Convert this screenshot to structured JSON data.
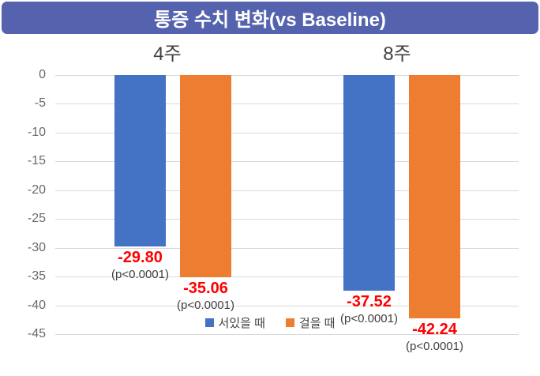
{
  "header": {
    "title": "통증 수치 변화(vs Baseline)",
    "bg_color": "#5563AE",
    "text_color": "#FFFFFF"
  },
  "chart_data": {
    "type": "bar",
    "title": "통증 수치 변화(vs Baseline)",
    "categories": [
      "4주",
      "8주"
    ],
    "category_ids": [
      "week4",
      "week8"
    ],
    "series": [
      {
        "id": "standing",
        "name": "서있을 때",
        "color": "#4472C4",
        "values": [
          -29.8,
          -37.52
        ],
        "value_labels": [
          "-29.80",
          "-37.52"
        ],
        "p_labels": [
          "(p<0.0001)",
          "(p<0.0001)"
        ]
      },
      {
        "id": "walking",
        "name": "걸을 때",
        "color": "#ED7D31",
        "values": [
          -35.06,
          -42.24
        ],
        "value_labels": [
          "-35.06",
          "-42.24"
        ],
        "p_labels": [
          "(p<0.0001)",
          "(p<0.0001)"
        ]
      }
    ],
    "ylim": [
      0,
      -45
    ],
    "y_ticks": [
      0,
      -5,
      -10,
      -15,
      -20,
      -25,
      -30,
      -35,
      -40,
      -45
    ],
    "y_tick_labels": [
      "0",
      "-5",
      "-10",
      "-15",
      "-20",
      "-25",
      "-30",
      "-35",
      "-40",
      "-45"
    ],
    "grid": true,
    "gridline_color": "#D9D9D9",
    "tick_label_color": "#6A6A6A",
    "group_label_color": "#404040",
    "value_label_color": "#FF0000",
    "p_label_color": "#3F3F3F",
    "legend_position": "bottom",
    "legend_text_color": "#404040"
  }
}
